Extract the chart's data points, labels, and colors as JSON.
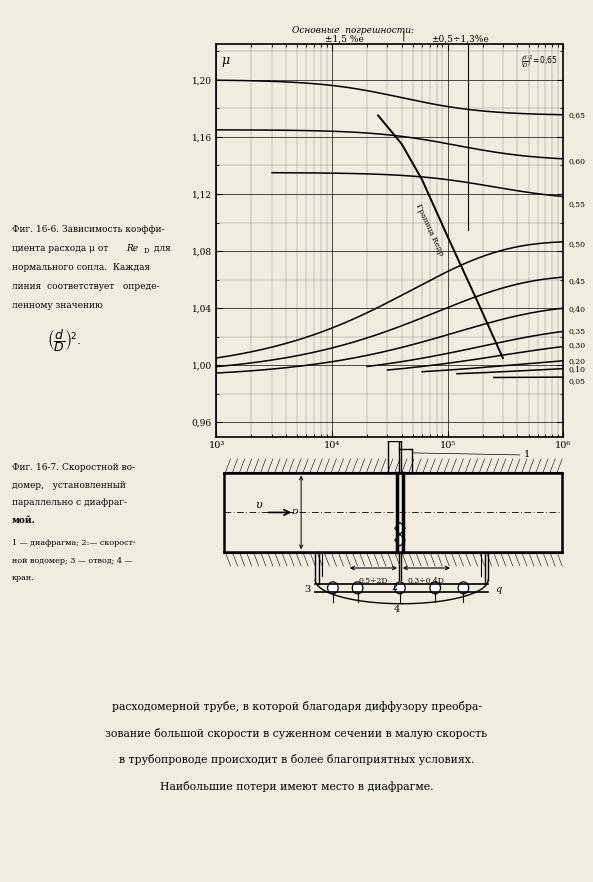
{
  "fig_width": 5.93,
  "fig_height": 8.82,
  "bg_color": "#f0ece0",
  "yticks": [
    0.96,
    1.0,
    1.04,
    1.08,
    1.12,
    1.16,
    1.2
  ],
  "ytick_labels": [
    "0,96",
    "1,00",
    "1,04",
    "1,08",
    "1,12",
    "1,16",
    "1,20"
  ],
  "curve_labels": [
    "0,65",
    "0,60",
    "0,55",
    "0,50",
    "0,45",
    "0,40",
    "0,35",
    "0,30",
    "0,20",
    "0,10",
    "0,05"
  ],
  "boundary_label": "Граница Reдр",
  "ylim": [
    0.95,
    1.225
  ]
}
